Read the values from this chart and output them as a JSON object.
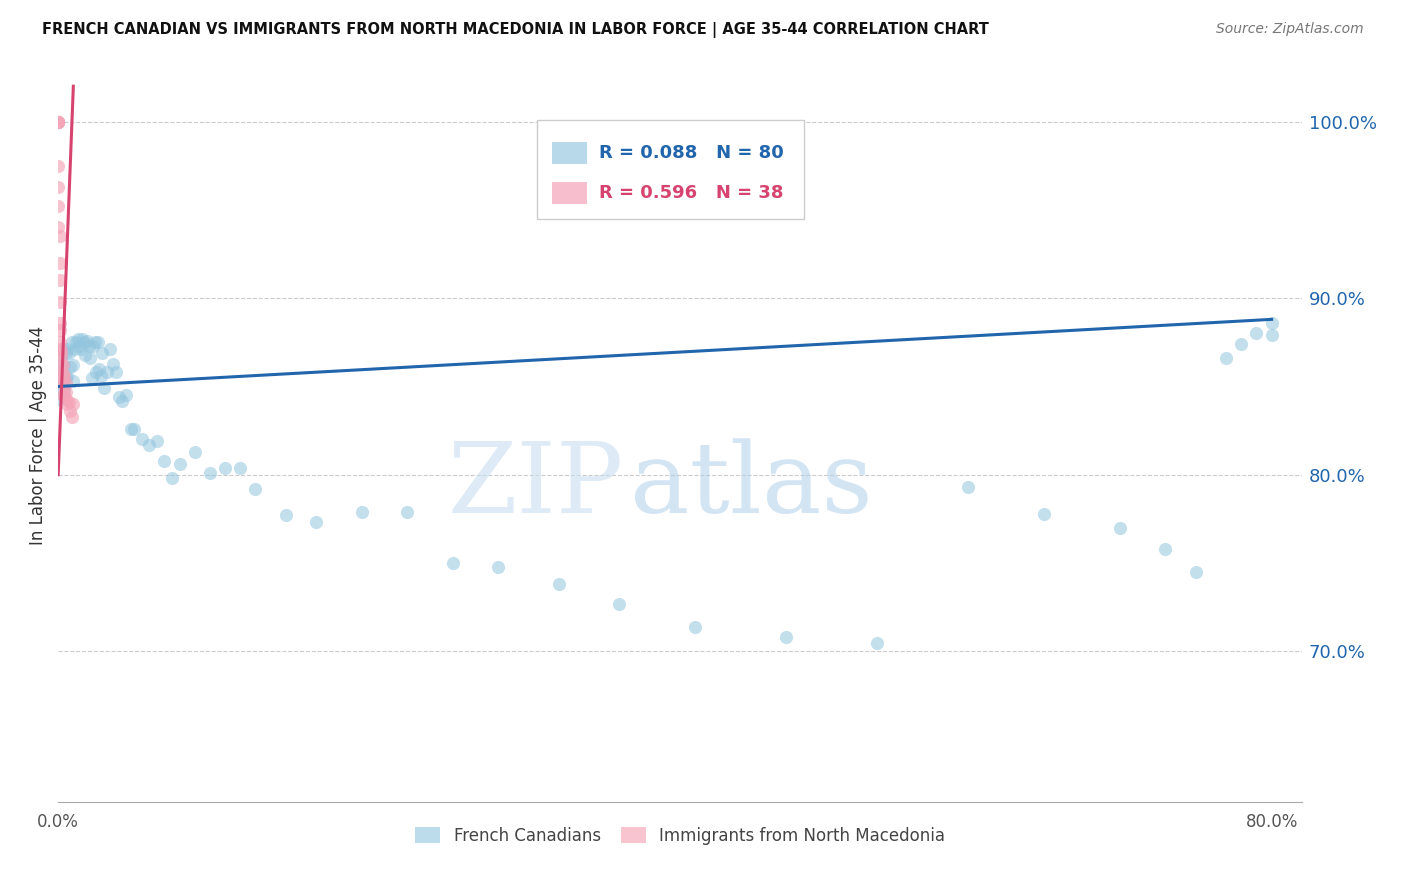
{
  "title": "FRENCH CANADIAN VS IMMIGRANTS FROM NORTH MACEDONIA IN LABOR FORCE | AGE 35-44 CORRELATION CHART",
  "source": "Source: ZipAtlas.com",
  "ylabel": "In Labor Force | Age 35-44",
  "legend_blue_r": "R = 0.088",
  "legend_blue_n": "N = 80",
  "legend_pink_r": "R = 0.596",
  "legend_pink_n": "N = 38",
  "blue_color": "#92c5de",
  "pink_color": "#f4a5b8",
  "blue_line_color": "#2166ac",
  "pink_line_color": "#d6436e",
  "blue_scatter_x": [
    0.0,
    0.0,
    0.001,
    0.001,
    0.002,
    0.002,
    0.003,
    0.003,
    0.004,
    0.004,
    0.005,
    0.005,
    0.006,
    0.006,
    0.007,
    0.008,
    0.009,
    0.01,
    0.01,
    0.011,
    0.012,
    0.013,
    0.014,
    0.015,
    0.016,
    0.017,
    0.018,
    0.019,
    0.02,
    0.021,
    0.022,
    0.023,
    0.024,
    0.025,
    0.026,
    0.027,
    0.028,
    0.029,
    0.03,
    0.032,
    0.034,
    0.036,
    0.038,
    0.04,
    0.042,
    0.045,
    0.048,
    0.05,
    0.055,
    0.06,
    0.065,
    0.07,
    0.075,
    0.08,
    0.09,
    0.1,
    0.11,
    0.12,
    0.13,
    0.15,
    0.17,
    0.2,
    0.23,
    0.26,
    0.29,
    0.33,
    0.37,
    0.42,
    0.48,
    0.54,
    0.6,
    0.65,
    0.7,
    0.73,
    0.75,
    0.77,
    0.78,
    0.79,
    0.8,
    0.8
  ],
  "blue_scatter_y": [
    0.857,
    0.843,
    0.861,
    0.849,
    0.853,
    0.867,
    0.871,
    0.855,
    0.848,
    0.862,
    0.855,
    0.869,
    0.871,
    0.856,
    0.869,
    0.861,
    0.875,
    0.862,
    0.853,
    0.871,
    0.875,
    0.877,
    0.873,
    0.871,
    0.877,
    0.875,
    0.868,
    0.876,
    0.873,
    0.866,
    0.855,
    0.873,
    0.875,
    0.858,
    0.875,
    0.86,
    0.856,
    0.869,
    0.849,
    0.858,
    0.871,
    0.863,
    0.858,
    0.844,
    0.842,
    0.845,
    0.826,
    0.826,
    0.82,
    0.817,
    0.819,
    0.808,
    0.798,
    0.806,
    0.813,
    0.801,
    0.804,
    0.804,
    0.792,
    0.777,
    0.773,
    0.779,
    0.779,
    0.75,
    0.748,
    0.738,
    0.727,
    0.714,
    0.708,
    0.705,
    0.793,
    0.778,
    0.77,
    0.758,
    0.745,
    0.866,
    0.874,
    0.88,
    0.879,
    0.886
  ],
  "pink_scatter_x": [
    0.0,
    0.0,
    0.0,
    0.0,
    0.0,
    0.0,
    0.0,
    0.0,
    0.0,
    0.0,
    0.001,
    0.001,
    0.001,
    0.001,
    0.001,
    0.001,
    0.001,
    0.001,
    0.002,
    0.002,
    0.002,
    0.002,
    0.002,
    0.003,
    0.003,
    0.003,
    0.003,
    0.004,
    0.004,
    0.004,
    0.005,
    0.005,
    0.005,
    0.006,
    0.007,
    0.008,
    0.009,
    0.01
  ],
  "pink_scatter_y": [
    1.0,
    1.0,
    1.0,
    1.0,
    1.0,
    1.0,
    0.975,
    0.963,
    0.952,
    0.94,
    0.935,
    0.92,
    0.91,
    0.898,
    0.886,
    0.882,
    0.875,
    0.871,
    0.87,
    0.867,
    0.863,
    0.857,
    0.854,
    0.862,
    0.857,
    0.852,
    0.845,
    0.856,
    0.85,
    0.845,
    0.852,
    0.847,
    0.843,
    0.84,
    0.841,
    0.836,
    0.833,
    0.84
  ],
  "blue_trend_x": [
    0.0,
    0.8
  ],
  "blue_trend_y": [
    0.85,
    0.888
  ],
  "pink_trend_x": [
    0.0,
    0.01
  ],
  "pink_trend_y": [
    0.8,
    1.02
  ],
  "xlim": [
    0.0,
    0.82
  ],
  "ylim": [
    0.615,
    1.03
  ],
  "xticks": [
    0.0,
    0.8
  ],
  "xtick_labels": [
    "0.0%",
    "80.0%"
  ],
  "ytick_values": [
    1.0,
    0.9,
    0.8,
    0.7
  ],
  "ytick_labels": [
    "100.0%",
    "90.0%",
    "80.0%",
    "70.0%"
  ],
  "watermark_zip": "ZIP",
  "watermark_atlas": "atlas",
  "legend_label_blue": "French Canadians",
  "legend_label_pink": "Immigrants from North Macedonia"
}
